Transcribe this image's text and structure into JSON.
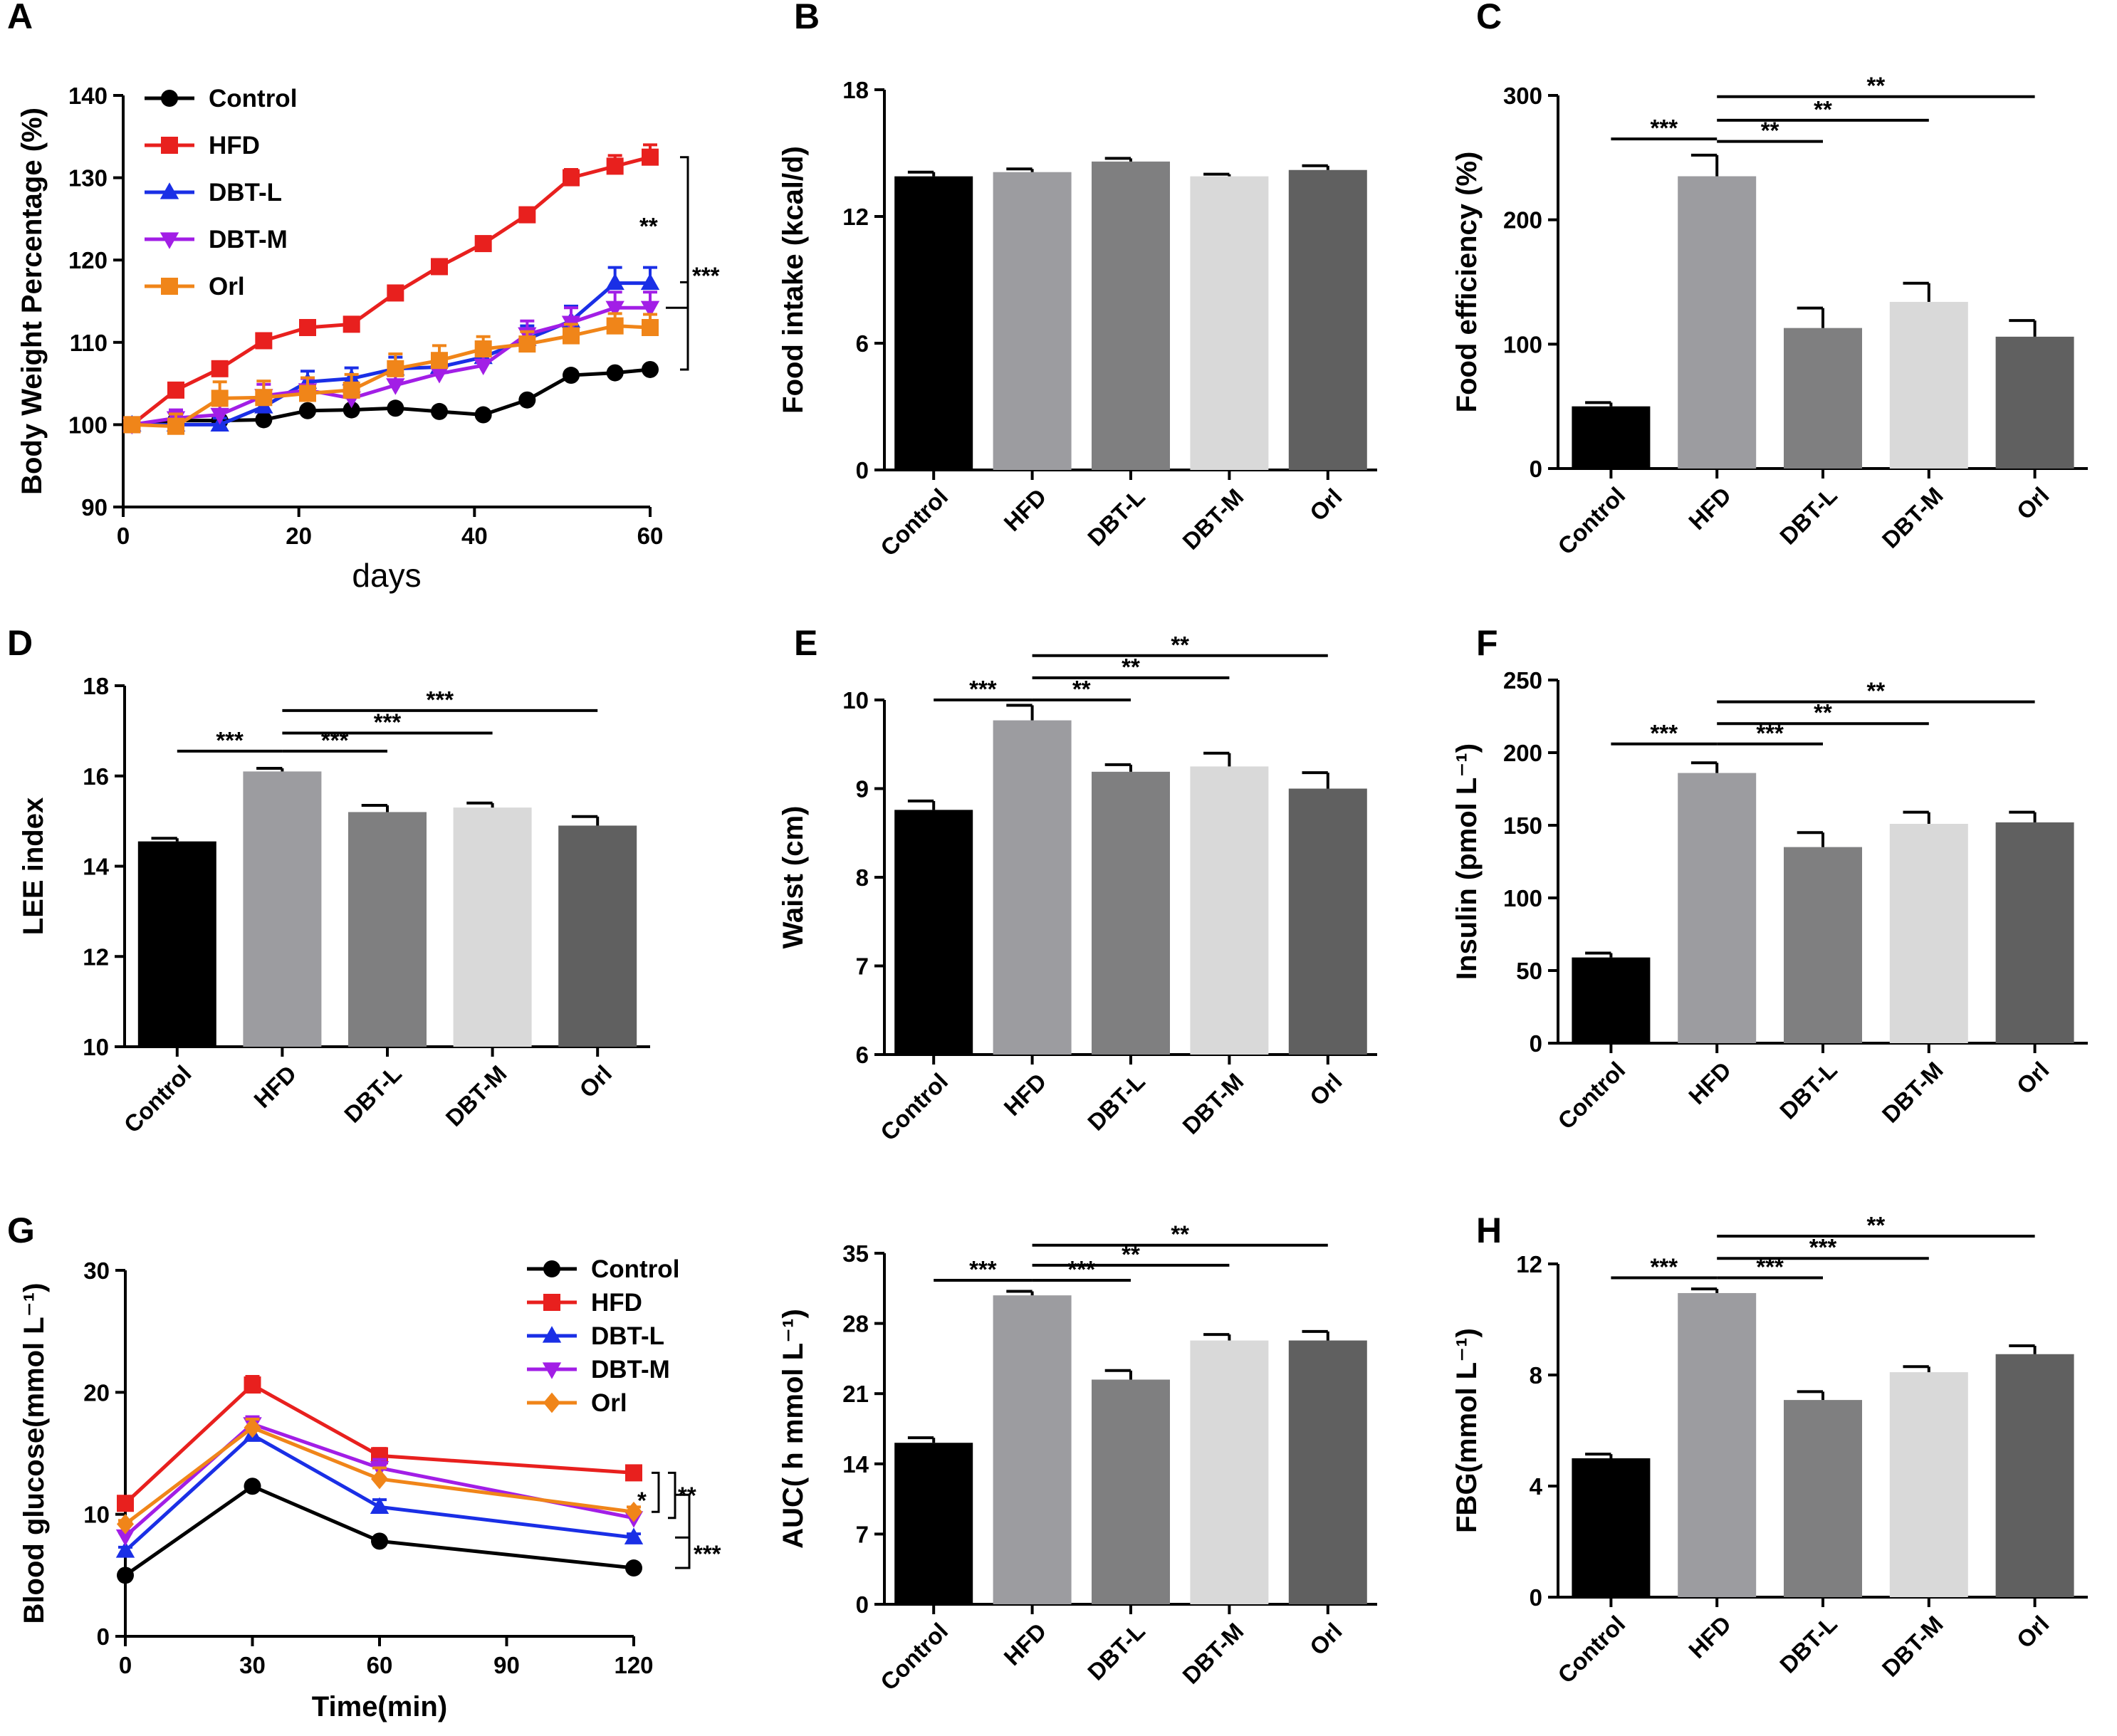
{
  "chart_data": [
    {
      "id": "A",
      "letter": "A",
      "type": "line",
      "xlabel": "days",
      "ylabel": "Body Weight Percentage (%)",
      "xlim": [
        0,
        60
      ],
      "ylim": [
        90,
        140
      ],
      "xticks": [
        0,
        20,
        40,
        60
      ],
      "yticks": [
        90,
        100,
        110,
        120,
        130,
        140
      ],
      "series": [
        {
          "name": "Control",
          "color": "#000000",
          "marker": "circle",
          "x": [
            1,
            6,
            11,
            16,
            21,
            26,
            31,
            36,
            41,
            46,
            51,
            56,
            60
          ],
          "y": [
            100,
            100.5,
            100.5,
            100.6,
            101.7,
            101.8,
            102,
            101.6,
            101.2,
            103,
            106,
            106.3,
            106.7
          ],
          "err": [
            0.3,
            0.3,
            0.3,
            0.3,
            0.3,
            0.3,
            0.3,
            0.3,
            0.3,
            0.3,
            0.4,
            0.4,
            0.4
          ]
        },
        {
          "name": "HFD",
          "color": "#e8201e",
          "marker": "square",
          "x": [
            1,
            6,
            11,
            16,
            21,
            26,
            31,
            36,
            41,
            46,
            51,
            56,
            60
          ],
          "y": [
            100,
            104.2,
            106.8,
            110.2,
            111.8,
            112.2,
            116,
            119.2,
            122,
            125.5,
            130,
            131.4,
            132.5
          ],
          "err": [
            0.3,
            0.5,
            0.5,
            0.5,
            0.5,
            0.5,
            0.6,
            0.7,
            0.7,
            0.8,
            1.0,
            1.3,
            1.5
          ]
        },
        {
          "name": "DBT-L",
          "color": "#1a2fe6",
          "marker": "triangle-up",
          "x": [
            1,
            6,
            11,
            16,
            21,
            26,
            31,
            36,
            41,
            46,
            51,
            56,
            60
          ],
          "y": [
            100,
            100,
            100,
            102.2,
            105.2,
            105.6,
            106.8,
            107,
            108.2,
            110.4,
            112.6,
            117.2,
            117.2
          ],
          "err": [
            0.3,
            0.8,
            0.8,
            1.0,
            1.3,
            1.3,
            1.4,
            1.4,
            1.5,
            1.6,
            1.8,
            1.9,
            1.9
          ]
        },
        {
          "name": "DBT-M",
          "color": "#a21ee6",
          "marker": "triangle-down",
          "x": [
            1,
            6,
            11,
            16,
            21,
            26,
            31,
            36,
            41,
            46,
            51,
            56,
            60
          ],
          "y": [
            100,
            100.8,
            101.2,
            103.5,
            104.2,
            103.2,
            104.8,
            106.2,
            107.2,
            111,
            112.4,
            114.2,
            114.2
          ],
          "err": [
            0.3,
            1.0,
            1.2,
            1.4,
            1.4,
            1.3,
            1.5,
            1.5,
            1.6,
            1.6,
            1.8,
            1.9,
            1.9
          ]
        },
        {
          "name": "Orl",
          "color": "#f08519",
          "marker": "square",
          "x": [
            1,
            6,
            11,
            16,
            21,
            26,
            31,
            36,
            41,
            46,
            51,
            56,
            60
          ],
          "y": [
            100,
            99.8,
            103.2,
            103.3,
            103.8,
            104.2,
            106.8,
            107.8,
            109.2,
            109.8,
            110.8,
            112,
            111.8
          ],
          "err": [
            0.5,
            1.5,
            2.0,
            2.0,
            1.9,
            1.9,
            1.8,
            1.8,
            1.5,
            1.5,
            1.4,
            1.5,
            1.6
          ]
        }
      ],
      "significance": [
        "**",
        "***"
      ]
    },
    {
      "id": "B",
      "letter": "B",
      "type": "bar",
      "ylabel": "Food intake (kcal/d)",
      "ylim": [
        0,
        18
      ],
      "yticks": [
        0,
        6,
        12,
        18
      ],
      "categories": [
        "Control",
        "HFD",
        "DBT-L",
        "DBT-M",
        "Orl"
      ],
      "values": [
        13.9,
        14.1,
        14.6,
        13.9,
        14.2
      ],
      "err": [
        0.2,
        0.15,
        0.15,
        0.1,
        0.2
      ],
      "colors": [
        "#000000",
        "#9c9ca0",
        "#7f7f80",
        "#d9d9d9",
        "#606060"
      ],
      "brackets": []
    },
    {
      "id": "C",
      "letter": "C",
      "type": "bar",
      "ylabel": "Food efficiency (%)",
      "ylim": [
        0,
        300
      ],
      "yticks": [
        0,
        100,
        200,
        300
      ],
      "categories": [
        "Control",
        "HFD",
        "DBT-L",
        "DBT-M",
        "Orl"
      ],
      "values": [
        50,
        235,
        113,
        134,
        106
      ],
      "err": [
        3,
        17,
        16,
        15,
        13
      ],
      "colors": [
        "#000000",
        "#9c9ca0",
        "#7f7f80",
        "#d9d9d9",
        "#606060"
      ],
      "brackets": [
        {
          "from": 0,
          "to": 1,
          "y": 265,
          "label": "***"
        },
        {
          "from": 1,
          "to": 2,
          "y": 263,
          "label": "**"
        },
        {
          "from": 1,
          "to": 3,
          "y": 280,
          "label": "**"
        },
        {
          "from": 1,
          "to": 4,
          "y": 299,
          "label": "**"
        }
      ]
    },
    {
      "id": "D",
      "letter": "D",
      "type": "bar",
      "ylabel": "LEE index",
      "ylim": [
        10,
        18
      ],
      "yticks": [
        10,
        12,
        14,
        16,
        18
      ],
      "categories": [
        "Control",
        "HFD",
        "DBT-L",
        "DBT-M",
        "Orl"
      ],
      "values": [
        14.55,
        16.1,
        15.2,
        15.3,
        14.9
      ],
      "err": [
        0.07,
        0.07,
        0.15,
        0.1,
        0.2
      ],
      "colors": [
        "#000000",
        "#9c9ca0",
        "#7f7f80",
        "#d9d9d9",
        "#606060"
      ],
      "brackets": [
        {
          "from": 0,
          "to": 1,
          "y": 16.55,
          "label": "***"
        },
        {
          "from": 1,
          "to": 2,
          "y": 16.55,
          "label": "***"
        },
        {
          "from": 1,
          "to": 3,
          "y": 16.95,
          "label": "***"
        },
        {
          "from": 1,
          "to": 4,
          "y": 17.45,
          "label": "***"
        }
      ]
    },
    {
      "id": "E",
      "letter": "E",
      "type": "bar",
      "ylabel": "Waist (cm)",
      "ylim": [
        6,
        10
      ],
      "yticks": [
        6,
        7,
        8,
        9,
        10
      ],
      "categories": [
        "Control",
        "HFD",
        "DBT-L",
        "DBT-M",
        "Orl"
      ],
      "values": [
        8.76,
        9.77,
        9.19,
        9.25,
        9.0
      ],
      "err": [
        0.1,
        0.17,
        0.08,
        0.15,
        0.18
      ],
      "colors": [
        "#000000",
        "#9c9ca0",
        "#7f7f80",
        "#d9d9d9",
        "#606060"
      ],
      "brackets": [
        {
          "from": 0,
          "to": 1,
          "y": 10.0,
          "label": "***"
        },
        {
          "from": 1,
          "to": 2,
          "y": 10.0,
          "label": "**"
        },
        {
          "from": 1,
          "to": 3,
          "y": 10.25,
          "label": "**"
        },
        {
          "from": 1,
          "to": 4,
          "y": 10.5,
          "label": "**"
        }
      ]
    },
    {
      "id": "F",
      "letter": "F",
      "type": "bar",
      "ylabel": "Insulin (pmol L⁻¹)",
      "ylim": [
        0,
        250
      ],
      "yticks": [
        0,
        50,
        100,
        150,
        200,
        250
      ],
      "categories": [
        "Control",
        "HFD",
        "DBT-L",
        "DBT-M",
        "Orl"
      ],
      "values": [
        59,
        186,
        135,
        151,
        152
      ],
      "err": [
        3,
        7,
        10,
        8,
        7
      ],
      "colors": [
        "#000000",
        "#9c9ca0",
        "#7f7f80",
        "#d9d9d9",
        "#606060"
      ],
      "brackets": [
        {
          "from": 0,
          "to": 1,
          "y": 206,
          "label": "***"
        },
        {
          "from": 1,
          "to": 2,
          "y": 206,
          "label": "***"
        },
        {
          "from": 1,
          "to": 3,
          "y": 220,
          "label": "**"
        },
        {
          "from": 1,
          "to": 4,
          "y": 235,
          "label": "**"
        }
      ]
    },
    {
      "id": "G",
      "letter": "G",
      "type": "line",
      "xlabel": "Time(min)",
      "ylabel": "Blood glucose(mmol L⁻¹)",
      "xlim": [
        0,
        120
      ],
      "ylim": [
        0,
        30
      ],
      "xticks": [
        0,
        30,
        60,
        90,
        120
      ],
      "yticks": [
        0,
        10,
        20,
        30
      ],
      "series": [
        {
          "name": "Control",
          "color": "#000000",
          "marker": "circle",
          "x": [
            0,
            30,
            60,
            120
          ],
          "y": [
            5.0,
            12.3,
            7.8,
            5.6
          ],
          "err": [
            0.2,
            0.3,
            0.3,
            0.2
          ]
        },
        {
          "name": "HFD",
          "color": "#e8201e",
          "marker": "square",
          "x": [
            0,
            30,
            60,
            120
          ],
          "y": [
            10.9,
            20.6,
            14.8,
            13.4
          ],
          "err": [
            0.3,
            0.7,
            0.6,
            0.4
          ]
        },
        {
          "name": "DBT-L",
          "color": "#1a2fe6",
          "marker": "triangle-up",
          "x": [
            0,
            30,
            60,
            120
          ],
          "y": [
            7.0,
            16.5,
            10.6,
            8.1
          ],
          "err": [
            0.3,
            0.6,
            0.6,
            0.3
          ]
        },
        {
          "name": "DBT-M",
          "color": "#a21ee6",
          "marker": "triangle-down",
          "x": [
            0,
            30,
            60,
            120
          ],
          "y": [
            8.2,
            17.4,
            13.8,
            9.7
          ],
          "err": [
            0.3,
            0.6,
            0.7,
            0.4
          ]
        },
        {
          "name": "Orl",
          "color": "#f08519",
          "marker": "diamond",
          "x": [
            0,
            30,
            60,
            120
          ],
          "y": [
            9.2,
            17.1,
            12.9,
            10.2
          ],
          "err": [
            0.3,
            0.7,
            0.9,
            0.4
          ]
        }
      ],
      "significance": [
        "*",
        "**",
        "***"
      ]
    },
    {
      "id": "G2",
      "letter": "",
      "type": "bar",
      "ylabel": "AUC( h mmol L⁻¹)",
      "ylim": [
        0,
        35
      ],
      "yticks": [
        0,
        7,
        14,
        21,
        28,
        35
      ],
      "categories": [
        "Control",
        "HFD",
        "DBT-L",
        "DBT-M",
        "Orl"
      ],
      "values": [
        16.1,
        30.8,
        22.4,
        26.3,
        26.3
      ],
      "err": [
        0.5,
        0.4,
        0.9,
        0.6,
        0.9
      ],
      "colors": [
        "#000000",
        "#9c9ca0",
        "#7f7f80",
        "#d9d9d9",
        "#606060"
      ],
      "brackets": [
        {
          "from": 0,
          "to": 1,
          "y": 32.3,
          "label": "***"
        },
        {
          "from": 1,
          "to": 2,
          "y": 32.3,
          "label": "***"
        },
        {
          "from": 1,
          "to": 3,
          "y": 33.8,
          "label": "**"
        },
        {
          "from": 1,
          "to": 4,
          "y": 35.8,
          "label": "**"
        }
      ]
    },
    {
      "id": "H",
      "letter": "H",
      "type": "bar",
      "ylabel": "FBG(mmol L⁻¹)",
      "ylim": [
        0,
        12
      ],
      "yticks": [
        0,
        4,
        8,
        12
      ],
      "categories": [
        "Control",
        "HFD",
        "DBT-L",
        "DBT-M",
        "Orl"
      ],
      "values": [
        5.0,
        10.95,
        7.1,
        8.1,
        8.75
      ],
      "err": [
        0.15,
        0.15,
        0.3,
        0.2,
        0.3
      ],
      "colors": [
        "#000000",
        "#9c9ca0",
        "#7f7f80",
        "#d9d9d9",
        "#606060"
      ],
      "brackets": [
        {
          "from": 0,
          "to": 1,
          "y": 11.5,
          "label": "***"
        },
        {
          "from": 1,
          "to": 2,
          "y": 11.5,
          "label": "***"
        },
        {
          "from": 1,
          "to": 3,
          "y": 12.2,
          "label": "***"
        },
        {
          "from": 1,
          "to": 4,
          "y": 13.0,
          "label": "**"
        }
      ]
    }
  ]
}
